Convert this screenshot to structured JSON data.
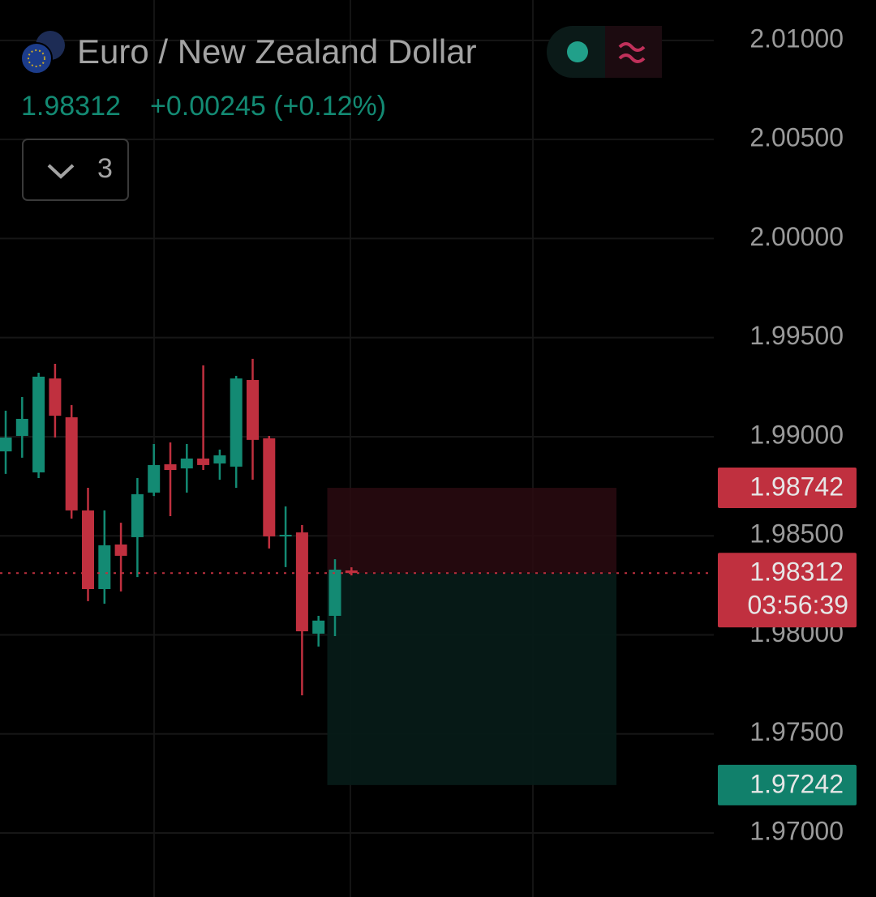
{
  "chart_data": {
    "type": "candlestick",
    "title": "Euro / New Zealand Dollar",
    "last_price": 1.98312,
    "change": "+0.00245 (+0.12%)",
    "indicator_count": 3,
    "countdown": "03:56:39",
    "categories": [
      null,
      null,
      null,
      null,
      null,
      null,
      null,
      null,
      null,
      null,
      null,
      null,
      null,
      null,
      null,
      null,
      null,
      null,
      null,
      null,
      null,
      null
    ],
    "open": [
      1.98926,
      1.99004,
      1.9882,
      1.99294,
      1.99098,
      1.98628,
      1.98231,
      1.98456,
      1.98493,
      1.98718,
      1.98861,
      1.9884,
      1.9889,
      1.98865,
      1.98849,
      1.99286,
      1.98992,
      1.98497,
      1.98517,
      1.98006,
      1.98096,
      1.98325
    ],
    "high": [
      1.99131,
      1.992,
      1.99323,
      1.99368,
      1.9916,
      1.98742,
      1.98628,
      1.98566,
      1.98791,
      1.98963,
      1.98971,
      1.98963,
      1.9936,
      1.98935,
      1.99307,
      1.99393,
      1.99004,
      1.98648,
      1.98554,
      1.98096,
      1.98382,
      1.98341
    ],
    "low": [
      1.98812,
      1.98894,
      1.98791,
      1.98996,
      1.98587,
      1.9817,
      1.98157,
      1.98219,
      1.98292,
      1.98701,
      1.98599,
      1.98718,
      1.98832,
      1.98783,
      1.98742,
      1.98783,
      1.98436,
      1.98342,
      1.97695,
      1.97941,
      1.97994,
      1.983
    ],
    "close": [
      1.98996,
      1.9909,
      1.99303,
      1.99106,
      1.98628,
      1.98231,
      1.98452,
      1.98399,
      1.9871,
      1.98857,
      1.98832,
      1.9889,
      1.98857,
      1.98906,
      1.99294,
      1.98984,
      1.98497,
      1.98505,
      1.98018,
      1.98072,
      1.98329,
      1.98312
    ],
    "up_color": "#138a73",
    "down_color": "#c0303f",
    "position": {
      "stop": 1.98742,
      "entry": 1.98312,
      "target": 1.97242
    },
    "marker_price": 1.98305,
    "ylim": [
      1.96677,
      2.01204
    ],
    "yticks": [
      {
        "value": 2.01,
        "label": "2.01000"
      },
      {
        "value": 2.005,
        "label": "2.00500"
      },
      {
        "value": 2.0,
        "label": "2.00000"
      },
      {
        "value": 1.995,
        "label": "1.99500"
      },
      {
        "value": 1.99,
        "label": "1.99000"
      },
      {
        "value": 1.985,
        "label": "1.98500"
      },
      {
        "value": 1.98,
        "label": "1.98000"
      },
      {
        "value": 1.975,
        "label": "1.97500"
      },
      {
        "value": 1.97,
        "label": "1.97000"
      }
    ],
    "grid": true
  }
}
